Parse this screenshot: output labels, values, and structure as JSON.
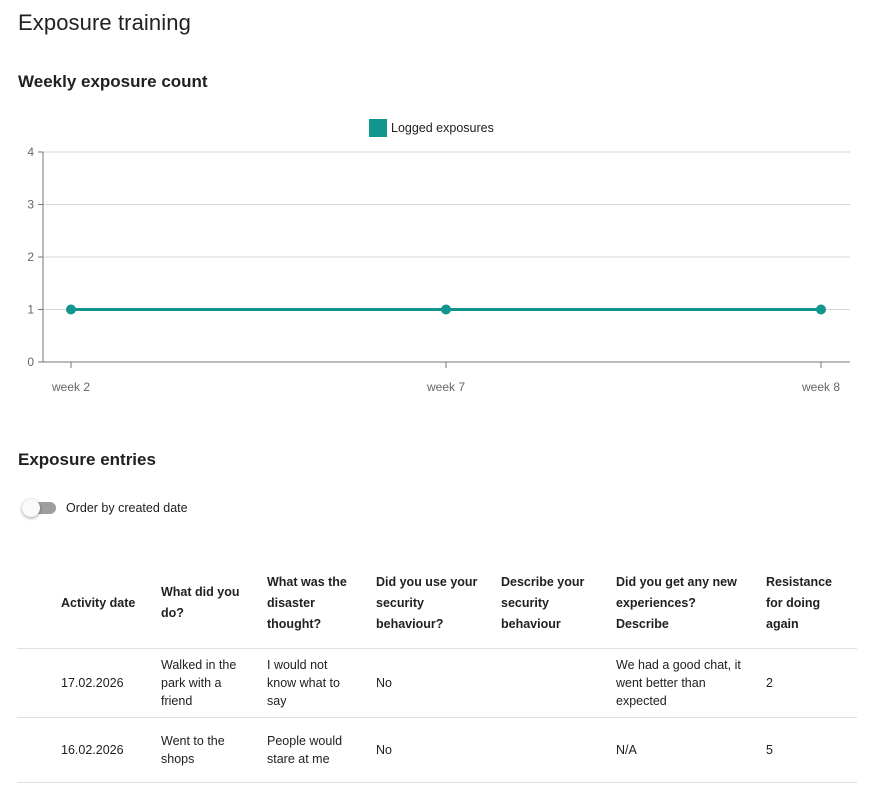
{
  "page": {
    "title": "Exposure training"
  },
  "chart_section": {
    "title": "Weekly exposure count"
  },
  "chart_data": {
    "type": "line",
    "categories": [
      "week 2",
      "week 7",
      "week 8"
    ],
    "series": [
      {
        "name": "Logged exposures",
        "values": [
          1,
          1,
          1
        ],
        "color": "#13958f"
      }
    ],
    "title": "",
    "xlabel": "",
    "ylabel": "",
    "ylim": [
      0,
      4
    ],
    "yticks": [
      0,
      1,
      2,
      3,
      4
    ],
    "grid": true,
    "legend": "top-center"
  },
  "entries_section": {
    "title": "Exposure entries",
    "toggle_label": "Order by created date",
    "toggle_on": false
  },
  "table": {
    "headers": [
      "Activity date",
      "What did you do?",
      "What was the disaster thought?",
      "Did you use your security behaviour?",
      "Describe your security behaviour",
      "Did you get any new experiences? Describe",
      "Resistance for doing again"
    ],
    "rows": [
      [
        "17.02.2026",
        "Walked in the park with a friend",
        "I would not know what to say",
        "No",
        "",
        "We had a good chat, it went better than expected",
        "2"
      ],
      [
        "16.02.2026",
        "Went to the shops",
        "People would stare at me",
        "No",
        "",
        "N/A",
        "5"
      ]
    ]
  }
}
